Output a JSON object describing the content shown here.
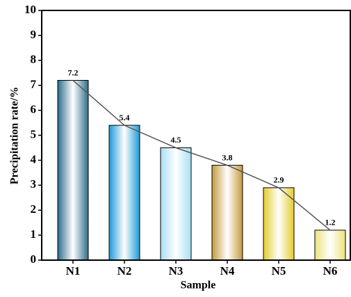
{
  "chart_data": {
    "type": "bar",
    "x_label": "Sample",
    "y_label": "Precipitation rate/%",
    "categories": [
      "N1",
      "N2",
      "N3",
      "N4",
      "N5",
      "N6"
    ],
    "values": [
      7.2,
      5.4,
      4.5,
      3.8,
      2.9,
      1.2
    ],
    "colors": [
      "#2b6d8c",
      "#1d9ad8",
      "#a9def5",
      "#c49a3c",
      "#e3cc2c",
      "#ede27a"
    ],
    "line_color": "#555555",
    "ylim": [
      0,
      10
    ],
    "yticks": [
      0,
      1,
      2,
      3,
      4,
      5,
      6,
      7,
      8,
      9,
      10
    ]
  }
}
